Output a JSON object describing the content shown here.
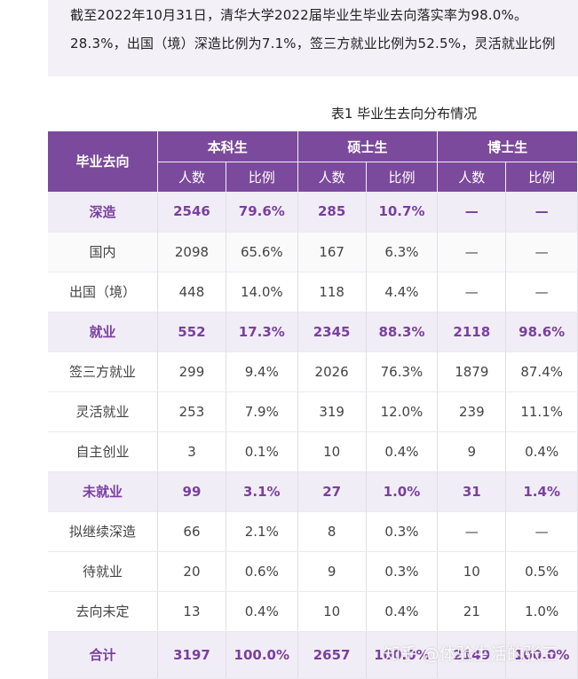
{
  "intro": {
    "line1": "截至2022年10月31日，清华大学2022届毕业生毕业去向落实率为98.0%。",
    "line2": "28.3%，出国（境）深造比例为7.1%，签三方就业比例为52.5%，灵活就业比例"
  },
  "caption": "表1  毕业生去向分布情况",
  "table": {
    "header": {
      "col0": "毕业去向",
      "groups": [
        "本科生",
        "硕士生",
        "博士生"
      ],
      "sub": [
        "人数",
        "比例",
        "人数",
        "比例",
        "人数",
        "比例"
      ]
    },
    "rows": [
      {
        "type": "cat",
        "cells": [
          "深造",
          "2546",
          "79.6%",
          "285",
          "10.7%",
          "—",
          "—"
        ]
      },
      {
        "type": "alt",
        "cells": [
          "国内",
          "2098",
          "65.6%",
          "167",
          "6.3%",
          "—",
          "—"
        ]
      },
      {
        "type": "",
        "cells": [
          "出国（境）",
          "448",
          "14.0%",
          "118",
          "4.4%",
          "—",
          "—"
        ]
      },
      {
        "type": "cat",
        "cells": [
          "就业",
          "552",
          "17.3%",
          "2345",
          "88.3%",
          "2118",
          "98.6%"
        ]
      },
      {
        "type": "",
        "cells": [
          "签三方就业",
          "299",
          "9.4%",
          "2026",
          "76.3%",
          "1879",
          "87.4%"
        ]
      },
      {
        "type": "",
        "cells": [
          "灵活就业",
          "253",
          "7.9%",
          "319",
          "12.0%",
          "239",
          "11.1%"
        ]
      },
      {
        "type": "",
        "cells": [
          "自主创业",
          "3",
          "0.1%",
          "10",
          "0.4%",
          "9",
          "0.4%"
        ]
      },
      {
        "type": "cat",
        "cells": [
          "未就业",
          "99",
          "3.1%",
          "27",
          "1.0%",
          "31",
          "1.4%"
        ]
      },
      {
        "type": "",
        "cells": [
          "拟继续深造",
          "66",
          "2.1%",
          "8",
          "0.3%",
          "—",
          "—"
        ]
      },
      {
        "type": "",
        "cells": [
          "待就业",
          "20",
          "0.6%",
          "9",
          "0.3%",
          "10",
          "0.5%"
        ]
      },
      {
        "type": "",
        "cells": [
          "去向未定",
          "13",
          "0.4%",
          "10",
          "0.4%",
          "21",
          "1.0%"
        ]
      },
      {
        "type": "total",
        "cells": [
          "合计",
          "3197",
          "100.0%",
          "2657",
          "100.0%",
          "2149",
          "100.0%"
        ]
      }
    ]
  },
  "watermark": "知乎 @体验生活的张三"
}
